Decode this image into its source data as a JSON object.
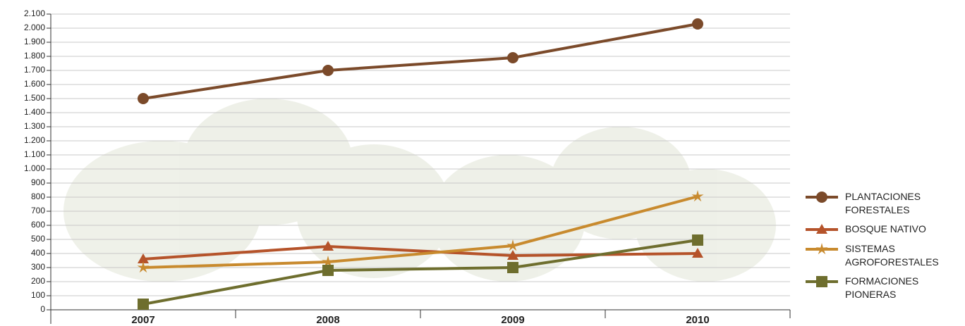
{
  "chart_data": {
    "type": "line",
    "categories": [
      "2007",
      "2008",
      "2009",
      "2010"
    ],
    "series": [
      {
        "name": "PLANTACIONES FORESTALES",
        "color": "#7b4a2a",
        "marker": "circle",
        "values": [
          1500,
          1700,
          1790,
          2030
        ]
      },
      {
        "name": "BOSQUE NATIVO",
        "color": "#b5532a",
        "marker": "triangle",
        "values": [
          360,
          450,
          385,
          400
        ]
      },
      {
        "name": "SISTEMAS AGROFORESTALES",
        "color": "#c88a2e",
        "marker": "star",
        "values": [
          300,
          340,
          455,
          805
        ]
      },
      {
        "name": "FORMACIONES PIONERAS",
        "color": "#6e6e2e",
        "marker": "square",
        "values": [
          40,
          280,
          300,
          495
        ]
      }
    ],
    "ylim": [
      0,
      2100
    ],
    "yticks": [
      0,
      100,
      200,
      300,
      400,
      500,
      600,
      700,
      800,
      900,
      {
        "value": 1000,
        "label": "1.000"
      },
      {
        "value": 1100,
        "label": "1.100"
      },
      {
        "value": 1200,
        "label": "1.200"
      },
      {
        "value": 1300,
        "label": "1.300"
      },
      {
        "value": 1400,
        "label": "1.400"
      },
      {
        "value": 1500,
        "label": "1.500"
      },
      {
        "value": 1600,
        "label": "1.600"
      },
      {
        "value": 1700,
        "label": "1.700"
      },
      {
        "value": 1800,
        "label": "1.800"
      },
      {
        "value": 1900,
        "label": "1.900"
      },
      {
        "value": 2000,
        "label": "2.000"
      },
      {
        "value": 2100,
        "label": "2.100"
      }
    ],
    "grid": true
  }
}
